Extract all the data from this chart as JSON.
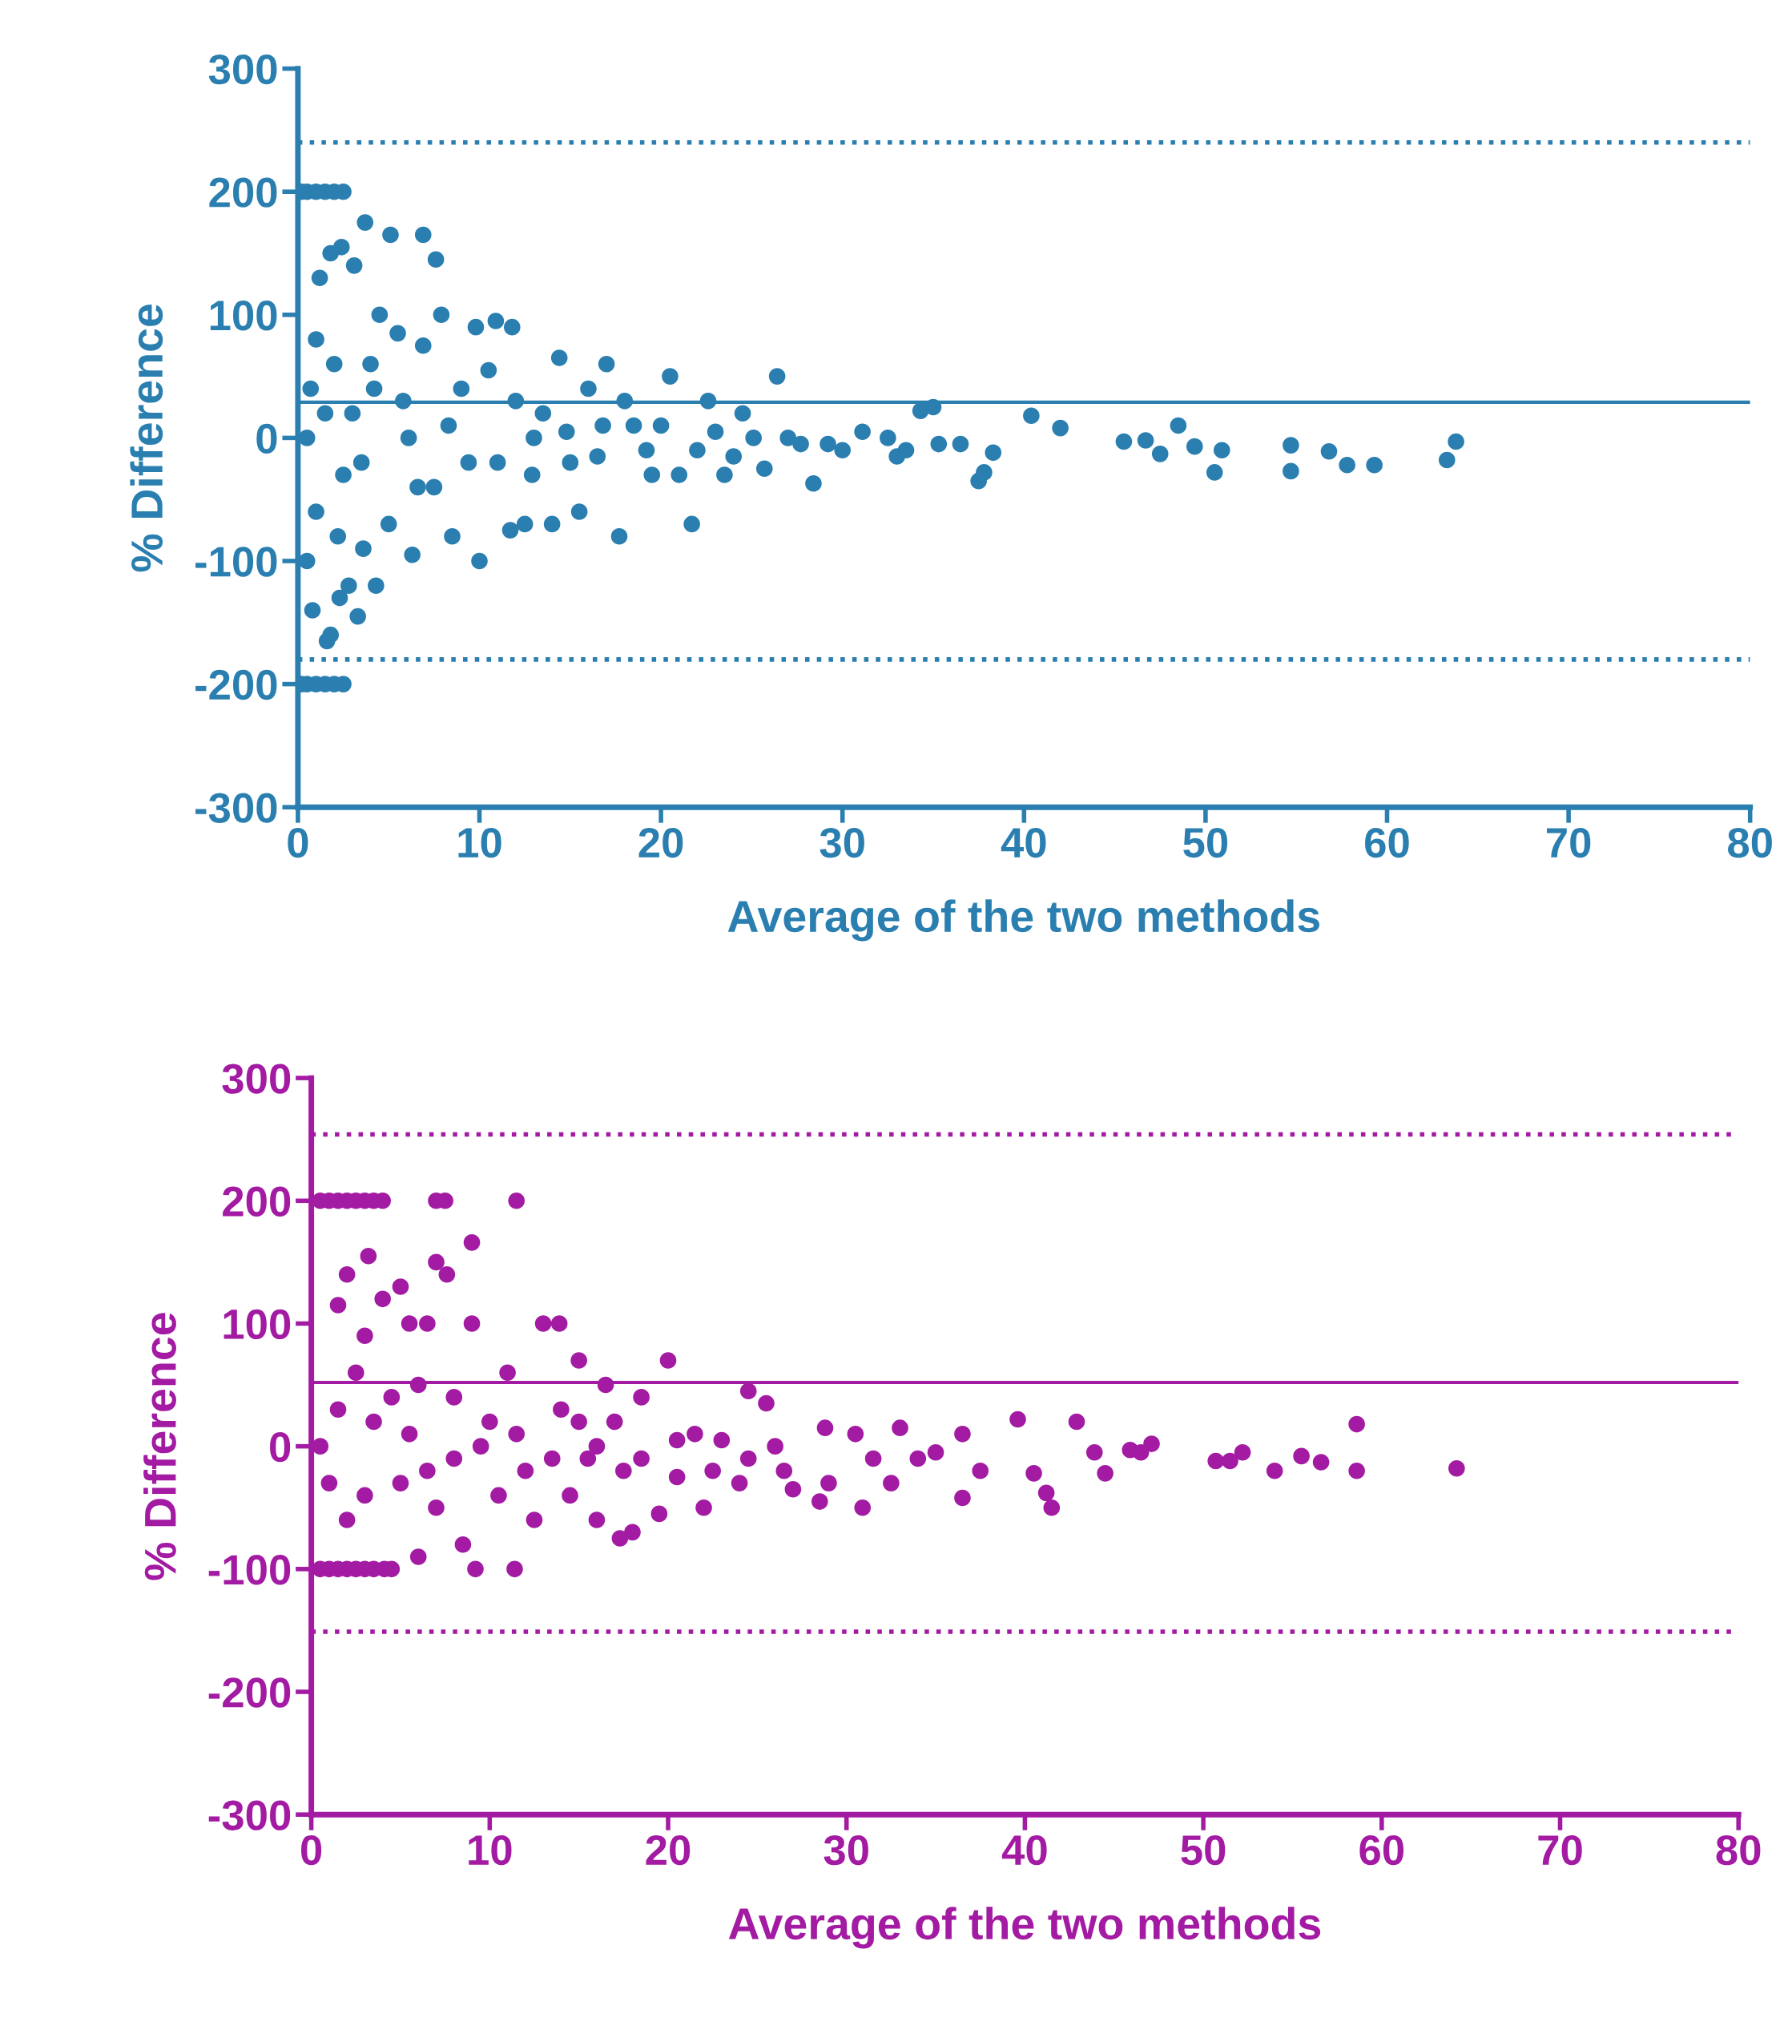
{
  "chart_data": [
    {
      "type": "scatter",
      "xlabel": "Average of the two methods",
      "ylabel": "% Difference",
      "marker": "circle",
      "grid": false,
      "xlim": [
        0,
        80
      ],
      "ylim": [
        -300,
        300
      ],
      "xticks": [
        0,
        10,
        20,
        30,
        40,
        50,
        60,
        70,
        80
      ],
      "yticks": [
        -300,
        -200,
        -100,
        0,
        100,
        200,
        300
      ],
      "ref_lines": [
        {
          "axis": "y",
          "value": 240,
          "color": "#2a7fb0",
          "line_style": "dotted"
        },
        {
          "axis": "y",
          "value": 29,
          "color": "#2a7fb0",
          "line_style": "solid"
        },
        {
          "axis": "y",
          "value": -180,
          "color": "#2a7fb0",
          "line_style": "dotted"
        }
      ],
      "series": [
        {
          "color": "#2a7fb0",
          "x": [
            63.8,
            63.3,
            59.3,
            57.8,
            56.8,
            54.7,
            54.7,
            50.9,
            50.5,
            49.4,
            48.5,
            47.5,
            46.7,
            45.5,
            42,
            40.4,
            38.3,
            37.5,
            37.8,
            36.5,
            35.3,
            34.3,
            35,
            33.5,
            31.1,
            29.2,
            28.4,
            27.7,
            26.4,
            25.7,
            25.1,
            24,
            23,
            22.6,
            21.7,
            21,
            20.5,
            19.2,
            18.5,
            17.7,
            17,
            16.5,
            16,
            15.5,
            14.8,
            14.4,
            14,
            13.5,
            12.9,
            12.5,
            11.7,
            11.8,
            10.9,
            10,
            10.5,
            9.4,
            9.8,
            8.5,
            8.3,
            7.9,
            7.5,
            7.6,
            6.9,
            6.9,
            6.3,
            6.1,
            5.1,
            5.5,
            5,
            4.5,
            4.3,
            4.2,
            3.7,
            3.6,
            3.3,
            3.1,
            2.8,
            2.5,
            2,
            1.5,
            1,
            0.5,
            0.2,
            2.5,
            2,
            1.5,
            1,
            0.5,
            0.2,
            1.6,
            1.8,
            2.3,
            0.8,
            0.5,
            1.2,
            1.8,
            2.4,
            1,
            2,
            1.5,
            0.5,
            2.5,
            1,
            3,
            3.5,
            0.7,
            4,
            2.2,
            5.8,
            6.6,
            9,
            11,
            12,
            13,
            15,
            16.8,
            18,
            19.5,
            20,
            22,
            23.5,
            24.5,
            27,
            30,
            32.5,
            33
          ],
          "values": [
            -3,
            -18,
            -22,
            -22,
            -11,
            -6,
            -27,
            -10,
            -28,
            -7,
            10,
            -13,
            -2,
            -3,
            8,
            18,
            -12,
            -35,
            -28,
            -5,
            -5,
            22,
            25,
            -10,
            5,
            -5,
            -37,
            -5,
            50,
            -25,
            0,
            -15,
            5,
            30,
            -70,
            -30,
            50,
            -10,
            10,
            -80,
            60,
            -15,
            40,
            -60,
            5,
            65,
            -70,
            20,
            -30,
            -70,
            -75,
            90,
            95,
            -100,
            55,
            -20,
            90,
            -80,
            10,
            100,
            -40,
            145,
            165,
            75,
            -95,
            0,
            165,
            85,
            -70,
            100,
            -120,
            40,
            175,
            -90,
            -145,
            140,
            -120,
            200,
            200,
            200,
            200,
            200,
            200,
            -200,
            -200,
            -200,
            -200,
            -200,
            -200,
            -165,
            -160,
            -130,
            -140,
            -100,
            130,
            150,
            155,
            80,
            60,
            20,
            0,
            -30,
            -60,
            20,
            -20,
            40,
            60,
            -80,
            30,
            -40,
            40,
            -20,
            30,
            0,
            -20,
            10,
            30,
            -30,
            10,
            -10,
            -30,
            20,
            0,
            -10,
            0,
            -15
          ]
        }
      ]
    },
    {
      "type": "scatter",
      "xlabel": "Average of the two methods",
      "ylabel": "% Difference",
      "marker": "circle",
      "grid": false,
      "xlim": [
        0,
        80
      ],
      "ylim": [
        -300,
        300
      ],
      "xticks": [
        0,
        10,
        20,
        30,
        40,
        50,
        60,
        70,
        80
      ],
      "yticks": [
        -300,
        -200,
        -100,
        0,
        100,
        200,
        300
      ],
      "ref_lines": [
        {
          "axis": "y",
          "value": 254,
          "color": "#a31aa3",
          "line_style": "dotted"
        },
        {
          "axis": "y",
          "value": 52,
          "color": "#a31aa3",
          "line_style": "solid"
        },
        {
          "axis": "y",
          "value": -151,
          "color": "#a31aa3",
          "line_style": "dotted"
        }
      ],
      "series": [
        {
          "color": "#a31aa3",
          "x": [
            64.2,
            58.6,
            58.6,
            56.6,
            55.5,
            54,
            52.2,
            51.5,
            50.7,
            47.1,
            46.5,
            45.9,
            44.5,
            43.9,
            42.9,
            41.5,
            41.2,
            40.5,
            39.6,
            37.5,
            36.5,
            36.5,
            35,
            34,
            33,
            32.5,
            31.5,
            30.9,
            30.5,
            29,
            28.8,
            28.5,
            27,
            26.5,
            25.5,
            24.5,
            24,
            23,
            22,
            21.5,
            20.5,
            20,
            19.5,
            18.5,
            18,
            17.3,
            17,
            16.5,
            16,
            15.5,
            15,
            14.5,
            14,
            13.9,
            13,
            12.5,
            11.5,
            11.4,
            11,
            10.5,
            10,
            9.2,
            9,
            9,
            8.5,
            8,
            7.5,
            7,
            7.6,
            7,
            7,
            6.5,
            6,
            6,
            5.5,
            5,
            4.5,
            4,
            3.5,
            3,
            2.5,
            2,
            1.5,
            1,
            0.5,
            4.1,
            3.5,
            3,
            2.5,
            2,
            1.5,
            1,
            0.5,
            3.2,
            2,
            1.5,
            4,
            3,
            2.5,
            1.5,
            0.5,
            1,
            2,
            3,
            3.5,
            4.5,
            5,
            5.5,
            6.5,
            8,
            9.5,
            11.5,
            12,
            13.5,
            15,
            16,
            17.5,
            18.5,
            20.5,
            22.5,
            24.5,
            26
          ],
          "values": [
            -18,
            18,
            -20,
            -13,
            -8,
            -20,
            -5,
            -12,
            -12,
            2,
            -5,
            -3,
            -22,
            -5,
            20,
            -50,
            -38,
            -22,
            22,
            -20,
            -42,
            10,
            -5,
            -10,
            15,
            -30,
            -10,
            -50,
            10,
            -30,
            15,
            -45,
            -35,
            -20,
            35,
            45,
            -30,
            5,
            -50,
            10,
            -25,
            70,
            -55,
            40,
            -70,
            -75,
            20,
            50,
            -60,
            -10,
            70,
            -40,
            30,
            100,
            100,
            -60,
            200,
            -100,
            60,
            -40,
            20,
            -100,
            166,
            100,
            -80,
            40,
            200,
            200,
            140,
            150,
            -50,
            100,
            -90,
            50,
            100,
            130,
            -100,
            200,
            200,
            200,
            200,
            200,
            200,
            200,
            200,
            -100,
            -100,
            -100,
            -100,
            -100,
            -100,
            -100,
            -100,
            155,
            140,
            115,
            120,
            90,
            60,
            30,
            0,
            -30,
            -60,
            -40,
            20,
            40,
            -30,
            10,
            -20,
            -10,
            0,
            10,
            -20,
            -10,
            20,
            0,
            -20,
            -10,
            5,
            -20,
            -10,
            0
          ]
        }
      ]
    }
  ]
}
